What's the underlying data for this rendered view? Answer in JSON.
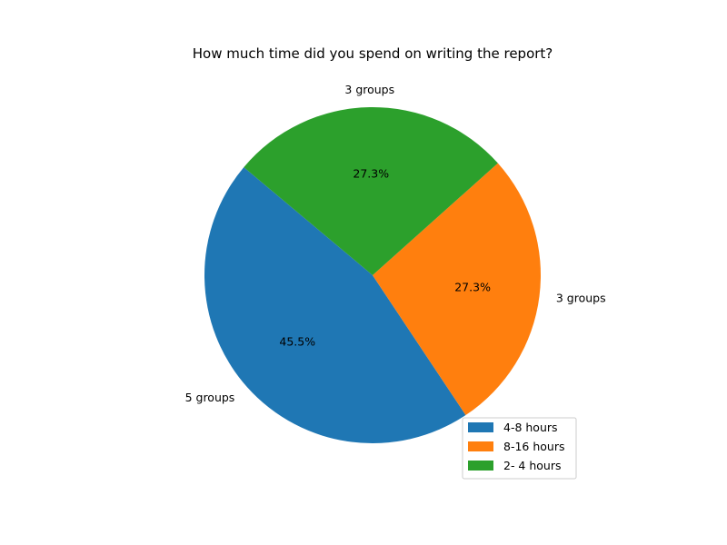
{
  "chart_data": {
    "type": "pie",
    "title": "How much time did you spend on writing the report?",
    "slices": [
      {
        "label": "4-8 hours",
        "value": 5,
        "outer_label": "5 groups",
        "pct_label": "45.5%",
        "color": "#1f77b4"
      },
      {
        "label": "8-16 hours",
        "value": 3,
        "outer_label": "3 groups",
        "pct_label": "27.3%",
        "color": "#ff7f0e"
      },
      {
        "label": "2- 4 hours",
        "value": 3,
        "outer_label": "3 groups",
        "pct_label": "27.3%",
        "color": "#2ca02c"
      }
    ],
    "start_angle_deg": 140,
    "direction": "counterclockwise",
    "legend": {
      "placement": "lower-right"
    }
  }
}
